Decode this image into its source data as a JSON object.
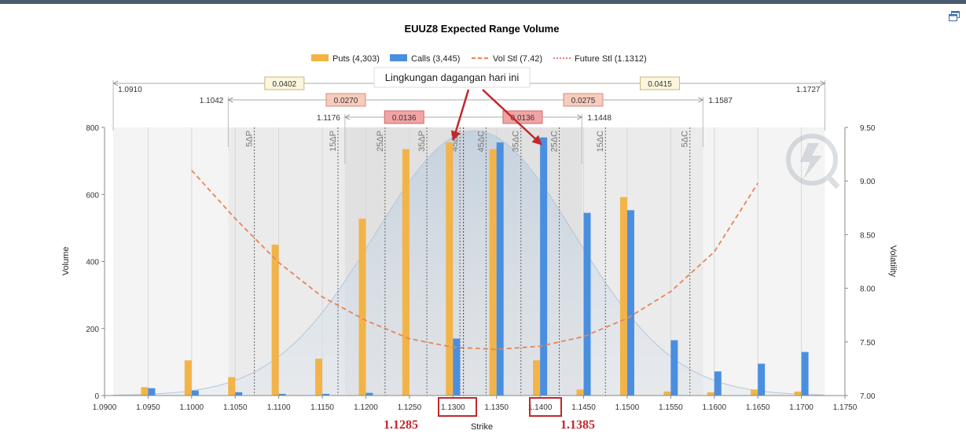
{
  "colors": {
    "puts": "#f2b448",
    "calls": "#4a8fdf",
    "vol_stl": "#e8845a",
    "future_stl": "#c8302f",
    "annotation_red": "#c0282d"
  },
  "icons": [
    "window-restore-icon",
    "watermark-logo-icon"
  ],
  "chart_data": {
    "type": "bar",
    "title": "EUUZ8 Expected Range Volume",
    "xlabel": "Strike",
    "ylabel": "Volume",
    "y2label": "Volatility",
    "legend": {
      "position": "top-center",
      "items": [
        "Puts (4,303)",
        "Calls (3,445)",
        "Vol Stl (7.42)",
        "Future Stl (1.1312)"
      ]
    },
    "x_ticks": [
      "1.0900",
      "1.0950",
      "1.1000",
      "1.1050",
      "1.1100",
      "1.1150",
      "1.1200",
      "1.1250",
      "1.1300",
      "1.1350",
      "1.1400",
      "1.1450",
      "1.1500",
      "1.1550",
      "1.1600",
      "1.1650",
      "1.1700",
      "1.1750"
    ],
    "xlim": [
      1.09,
      1.175
    ],
    "ylim": [
      0,
      800
    ],
    "y_ticks": [
      "0",
      "200",
      "400",
      "600",
      "800"
    ],
    "y2lim": [
      7.0,
      9.5
    ],
    "y2_ticks": [
      "7.00",
      "7.50",
      "8.00",
      "8.50",
      "9.00",
      "9.50"
    ],
    "strikes": [
      1.095,
      1.1,
      1.105,
      1.11,
      1.115,
      1.12,
      1.125,
      1.13,
      1.135,
      1.14,
      1.145,
      1.15,
      1.155,
      1.16,
      1.165,
      1.17
    ],
    "series": [
      {
        "name": "Puts (4,303)",
        "values": [
          25,
          105,
          55,
          450,
          110,
          528,
          735,
          755,
          735,
          105,
          18,
          592,
          12,
          10,
          18,
          12
        ]
      },
      {
        "name": "Calls (3,445)",
        "values": [
          22,
          15,
          10,
          5,
          5,
          8,
          0,
          170,
          755,
          770,
          545,
          553,
          165,
          72,
          95,
          130
        ]
      }
    ],
    "vol_stl_curve": {
      "x": [
        1.1,
        1.105,
        1.11,
        1.115,
        1.12,
        1.125,
        1.13,
        1.135,
        1.14,
        1.145,
        1.15,
        1.155,
        1.16,
        1.165
      ],
      "y": [
        9.1,
        8.65,
        8.24,
        7.92,
        7.7,
        7.53,
        7.45,
        7.43,
        7.46,
        7.55,
        7.72,
        7.97,
        8.34,
        8.98
      ]
    },
    "future_stl": 1.1312,
    "distribution_peak_x": 1.1325,
    "distribution_sigma": 0.0115,
    "ranges": [
      {
        "label": "0.0402",
        "low": "1.0910",
        "high": "1.1727",
        "low_value": 1.091,
        "high_value": 1.1727
      },
      {
        "label": "0.0270",
        "low": "1.1042",
        "high": "1.1587",
        "low_value": 1.1042,
        "high_value": 1.1587
      },
      {
        "label": "0.0136",
        "low": "1.1176",
        "high": "1.1448",
        "low_value": 1.1176,
        "high_value": 1.1448
      }
    ],
    "range_upper_labels": [
      "0.0415",
      "0.0275",
      "0.0136"
    ],
    "delta_lines": [
      {
        "label": "5ΔP",
        "x": 1.1072
      },
      {
        "label": "15ΔP",
        "x": 1.1168
      },
      {
        "label": "25ΔP",
        "x": 1.1222
      },
      {
        "label": "35ΔP",
        "x": 1.127
      },
      {
        "label": "45ΔP",
        "x": 1.1308
      },
      {
        "label": "45ΔC",
        "x": 1.1338
      },
      {
        "label": "35ΔC",
        "x": 1.1378
      },
      {
        "label": "25ΔC",
        "x": 1.1422
      },
      {
        "label": "15ΔC",
        "x": 1.1475
      },
      {
        "label": "5ΔC",
        "x": 1.1572
      }
    ],
    "annotation": {
      "callout_text": "Lingkungan dagangan hari ini",
      "left_value": "1.1285",
      "right_value": "1.1385",
      "boxed_ticks": [
        "1.1300",
        "1.1400"
      ]
    }
  }
}
